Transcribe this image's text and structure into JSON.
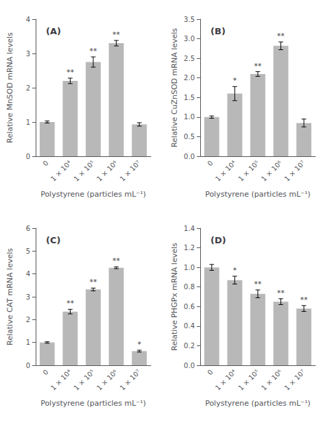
{
  "chart_data": [
    {
      "type": "bar",
      "title": "(A)",
      "xlabel": "Polystyrene (particles mL⁻¹)",
      "ylabel": "Relative MnSOD mRNA levels",
      "categories": [
        "0",
        "1 × 10⁴",
        "1 × 10⁵",
        "1 × 10⁶",
        "1 × 10⁷"
      ],
      "values": [
        1.0,
        2.2,
        2.75,
        3.3,
        0.93
      ],
      "errors": [
        0.03,
        0.08,
        0.15,
        0.08,
        0.05
      ],
      "sig": [
        null,
        "**",
        "**",
        "**",
        null
      ],
      "color": "#b8b8b8",
      "ylim": [
        0,
        4
      ],
      "yticks": [
        0,
        1,
        2,
        3,
        4
      ],
      "grid": false
    },
    {
      "type": "bar",
      "title": "(B)",
      "xlabel": "Polystyrene (particles mL⁻¹)",
      "ylabel": "Relative CuZnSOD mRNA levels",
      "categories": [
        "0",
        "1 × 10⁴",
        "1 × 10⁵",
        "1 × 10⁶",
        "1 × 10⁷"
      ],
      "values": [
        1.0,
        1.6,
        2.1,
        2.82,
        0.85
      ],
      "errors": [
        0.03,
        0.18,
        0.06,
        0.1,
        0.1
      ],
      "sig": [
        null,
        "*",
        "**",
        "**",
        null
      ],
      "color": "#b8b8b8",
      "ylim": [
        0,
        3.5
      ],
      "yticks": [
        {
          "value": 0,
          "label": "0.0"
        },
        0.5,
        {
          "value": 1,
          "label": "1.0"
        },
        1.5,
        {
          "value": 2,
          "label": "2.0"
        },
        2.5,
        {
          "value": 3,
          "label": "3.0"
        },
        3.5
      ],
      "grid": false
    },
    {
      "type": "bar",
      "title": "(C)",
      "xlabel": "Polystyrene (particles mL⁻¹)",
      "ylabel": "Relative CAT mRNA levels",
      "categories": [
        "0",
        "1 × 10⁴",
        "1 × 10⁵",
        "1 × 10⁶",
        "1 × 10⁷"
      ],
      "values": [
        1.0,
        2.35,
        3.32,
        4.27,
        0.62
      ],
      "errors": [
        0.03,
        0.1,
        0.06,
        0.04,
        0.04
      ],
      "sig": [
        null,
        "**",
        "**",
        "**",
        "*"
      ],
      "color": "#b8b8b8",
      "ylim": [
        0,
        6
      ],
      "yticks": [
        0,
        1,
        2,
        3,
        4,
        5,
        6
      ],
      "grid": false
    },
    {
      "type": "bar",
      "title": "(D)",
      "xlabel": "Polystyrene (particles mL⁻¹)",
      "ylabel": "Relative PHGPx mRNA levels",
      "categories": [
        "0",
        "1 × 10⁴",
        "1 × 10⁵",
        "1 × 10⁶",
        "1 × 10⁷"
      ],
      "values": [
        1.0,
        0.87,
        0.73,
        0.65,
        0.58
      ],
      "errors": [
        0.03,
        0.04,
        0.04,
        0.03,
        0.03
      ],
      "sig": [
        null,
        "*",
        "**",
        "**",
        "**"
      ],
      "color": "#b8b8b8",
      "ylim": [
        0,
        1.4
      ],
      "yticks": [
        {
          "value": 0,
          "label": "0.0"
        },
        0.2,
        0.4,
        0.6,
        0.8,
        {
          "value": 1,
          "label": "1.0"
        },
        1.2,
        1.4
      ],
      "grid": false
    }
  ]
}
